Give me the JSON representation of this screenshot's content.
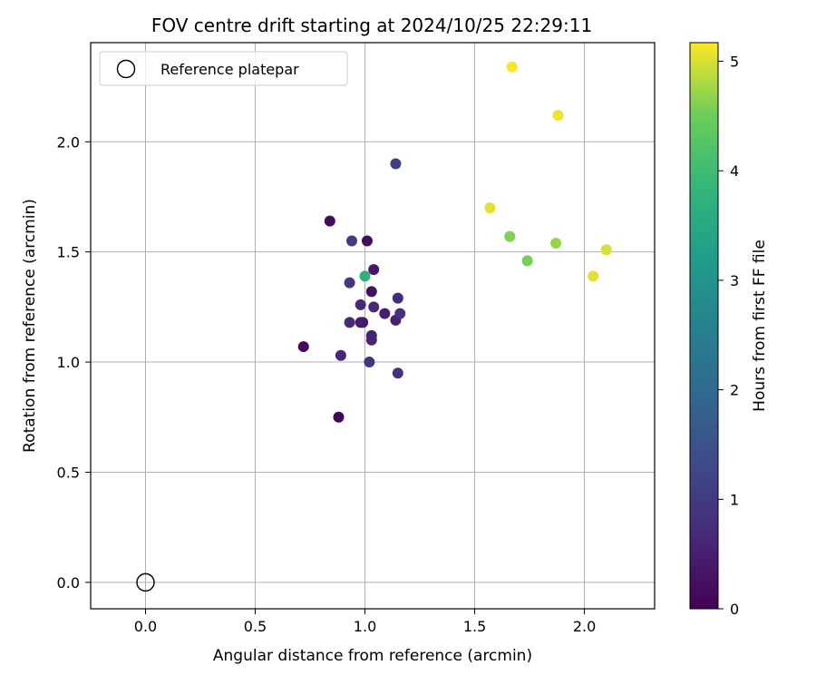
{
  "chart_data": {
    "type": "scatter",
    "title": "FOV centre drift starting at 2024/10/25 22:29:11",
    "xlabel": "Angular distance from reference (arcmin)",
    "ylabel": "Rotation from reference (arcmin)",
    "xlim": [
      -0.25,
      2.32
    ],
    "ylim": [
      -0.12,
      2.45
    ],
    "xticks": [
      0.0,
      0.5,
      1.0,
      1.5,
      2.0
    ],
    "xtick_labels": [
      "0.0",
      "0.5",
      "1.0",
      "1.5",
      "2.0"
    ],
    "yticks": [
      0.0,
      0.5,
      1.0,
      1.5,
      2.0
    ],
    "ytick_labels": [
      "0.0",
      "0.5",
      "1.0",
      "1.5",
      "2.0"
    ],
    "grid": true,
    "legend": {
      "placement": "upper-left",
      "entries": [
        "Reference platepar"
      ]
    },
    "reference_point": {
      "x": 0.0,
      "y": 0.0,
      "marker": "hollow-circle"
    },
    "colorbar": {
      "label": "Hours from first FF file",
      "colormap": "viridis",
      "range": [
        0,
        5.17
      ],
      "ticks": [
        0,
        1,
        2,
        3,
        4,
        5
      ],
      "tick_labels": [
        "0",
        "1",
        "2",
        "3",
        "4",
        "5"
      ]
    },
    "points": [
      {
        "x": 0.88,
        "y": 0.75,
        "hours": 0.05
      },
      {
        "x": 0.72,
        "y": 1.07,
        "hours": 0.1
      },
      {
        "x": 0.84,
        "y": 1.64,
        "hours": 0.2
      },
      {
        "x": 1.01,
        "y": 1.55,
        "hours": 0.2
      },
      {
        "x": 1.03,
        "y": 1.32,
        "hours": 0.25
      },
      {
        "x": 0.99,
        "y": 1.18,
        "hours": 0.3
      },
      {
        "x": 1.04,
        "y": 1.42,
        "hours": 0.35
      },
      {
        "x": 0.98,
        "y": 1.18,
        "hours": 0.45
      },
      {
        "x": 1.09,
        "y": 1.22,
        "hours": 0.5
      },
      {
        "x": 1.14,
        "y": 1.19,
        "hours": 0.5
      },
      {
        "x": 1.03,
        "y": 1.12,
        "hours": 0.55
      },
      {
        "x": 1.03,
        "y": 1.1,
        "hours": 0.6
      },
      {
        "x": 0.89,
        "y": 1.03,
        "hours": 0.6
      },
      {
        "x": 1.04,
        "y": 1.25,
        "hours": 0.65
      },
      {
        "x": 0.98,
        "y": 1.26,
        "hours": 0.7
      },
      {
        "x": 0.93,
        "y": 1.18,
        "hours": 0.7
      },
      {
        "x": 1.15,
        "y": 1.29,
        "hours": 0.75
      },
      {
        "x": 1.16,
        "y": 1.22,
        "hours": 0.8
      },
      {
        "x": 1.15,
        "y": 0.95,
        "hours": 0.85
      },
      {
        "x": 1.02,
        "y": 1.0,
        "hours": 0.9
      },
      {
        "x": 0.93,
        "y": 1.36,
        "hours": 0.95
      },
      {
        "x": 0.94,
        "y": 1.55,
        "hours": 1.05
      },
      {
        "x": 1.14,
        "y": 1.9,
        "hours": 1.1
      },
      {
        "x": 1.0,
        "y": 1.39,
        "hours": 3.7
      },
      {
        "x": 1.74,
        "y": 1.46,
        "hours": 4.55
      },
      {
        "x": 1.66,
        "y": 1.57,
        "hours": 4.6
      },
      {
        "x": 1.87,
        "y": 1.54,
        "hours": 4.7
      },
      {
        "x": 2.1,
        "y": 1.51,
        "hours": 5.0
      },
      {
        "x": 1.57,
        "y": 1.7,
        "hours": 5.05
      },
      {
        "x": 2.04,
        "y": 1.39,
        "hours": 5.05
      },
      {
        "x": 1.88,
        "y": 2.12,
        "hours": 5.1
      },
      {
        "x": 1.67,
        "y": 2.34,
        "hours": 5.15
      }
    ]
  }
}
